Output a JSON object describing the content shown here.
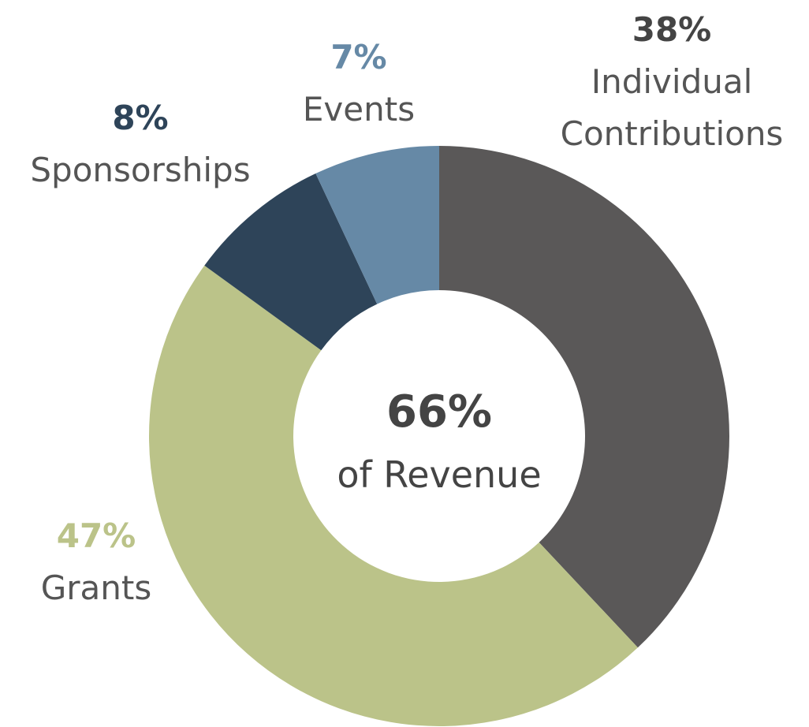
{
  "chart_data": {
    "type": "donut",
    "categories": [
      "Individual Contributions",
      "Grants",
      "Sponsorships",
      "Events"
    ],
    "values": [
      38,
      47,
      8,
      7
    ],
    "value_labels": [
      "38%",
      "47%",
      "8%",
      "7%"
    ],
    "colors": [
      "#5a5858",
      "#bbc389",
      "#2e4459",
      "#6689a6"
    ],
    "center": {
      "value": 66,
      "label": "66%"
    },
    "center_caption": "of Revenue"
  }
}
